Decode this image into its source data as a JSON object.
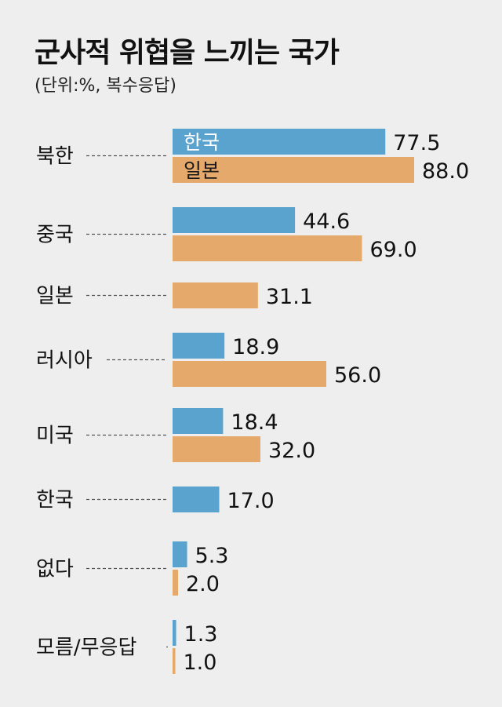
{
  "title": "군사적 위협을 느끼는 국가",
  "subtitle": "(단위:%, 복수응답)",
  "chart_data": {
    "type": "bar",
    "orientation": "horizontal",
    "title": "군사적 위협을 느끼는 국가",
    "subtitle": "(단위:%, 복수응답)",
    "categories": [
      "북한",
      "중국",
      "일본",
      "러시아",
      "미국",
      "한국",
      "없다",
      "모름/무응답"
    ],
    "series": [
      {
        "name": "한국",
        "values": [
          77.5,
          44.6,
          null,
          18.9,
          18.4,
          17.0,
          5.3,
          1.3
        ]
      },
      {
        "name": "일본",
        "values": [
          88.0,
          69.0,
          31.1,
          56.0,
          32.0,
          null,
          2.0,
          1.0
        ]
      }
    ],
    "legend": "inside first bars",
    "grid": false,
    "colors": {
      "한국": "#5ba3cf",
      "일본": "#e6a96c"
    }
  }
}
